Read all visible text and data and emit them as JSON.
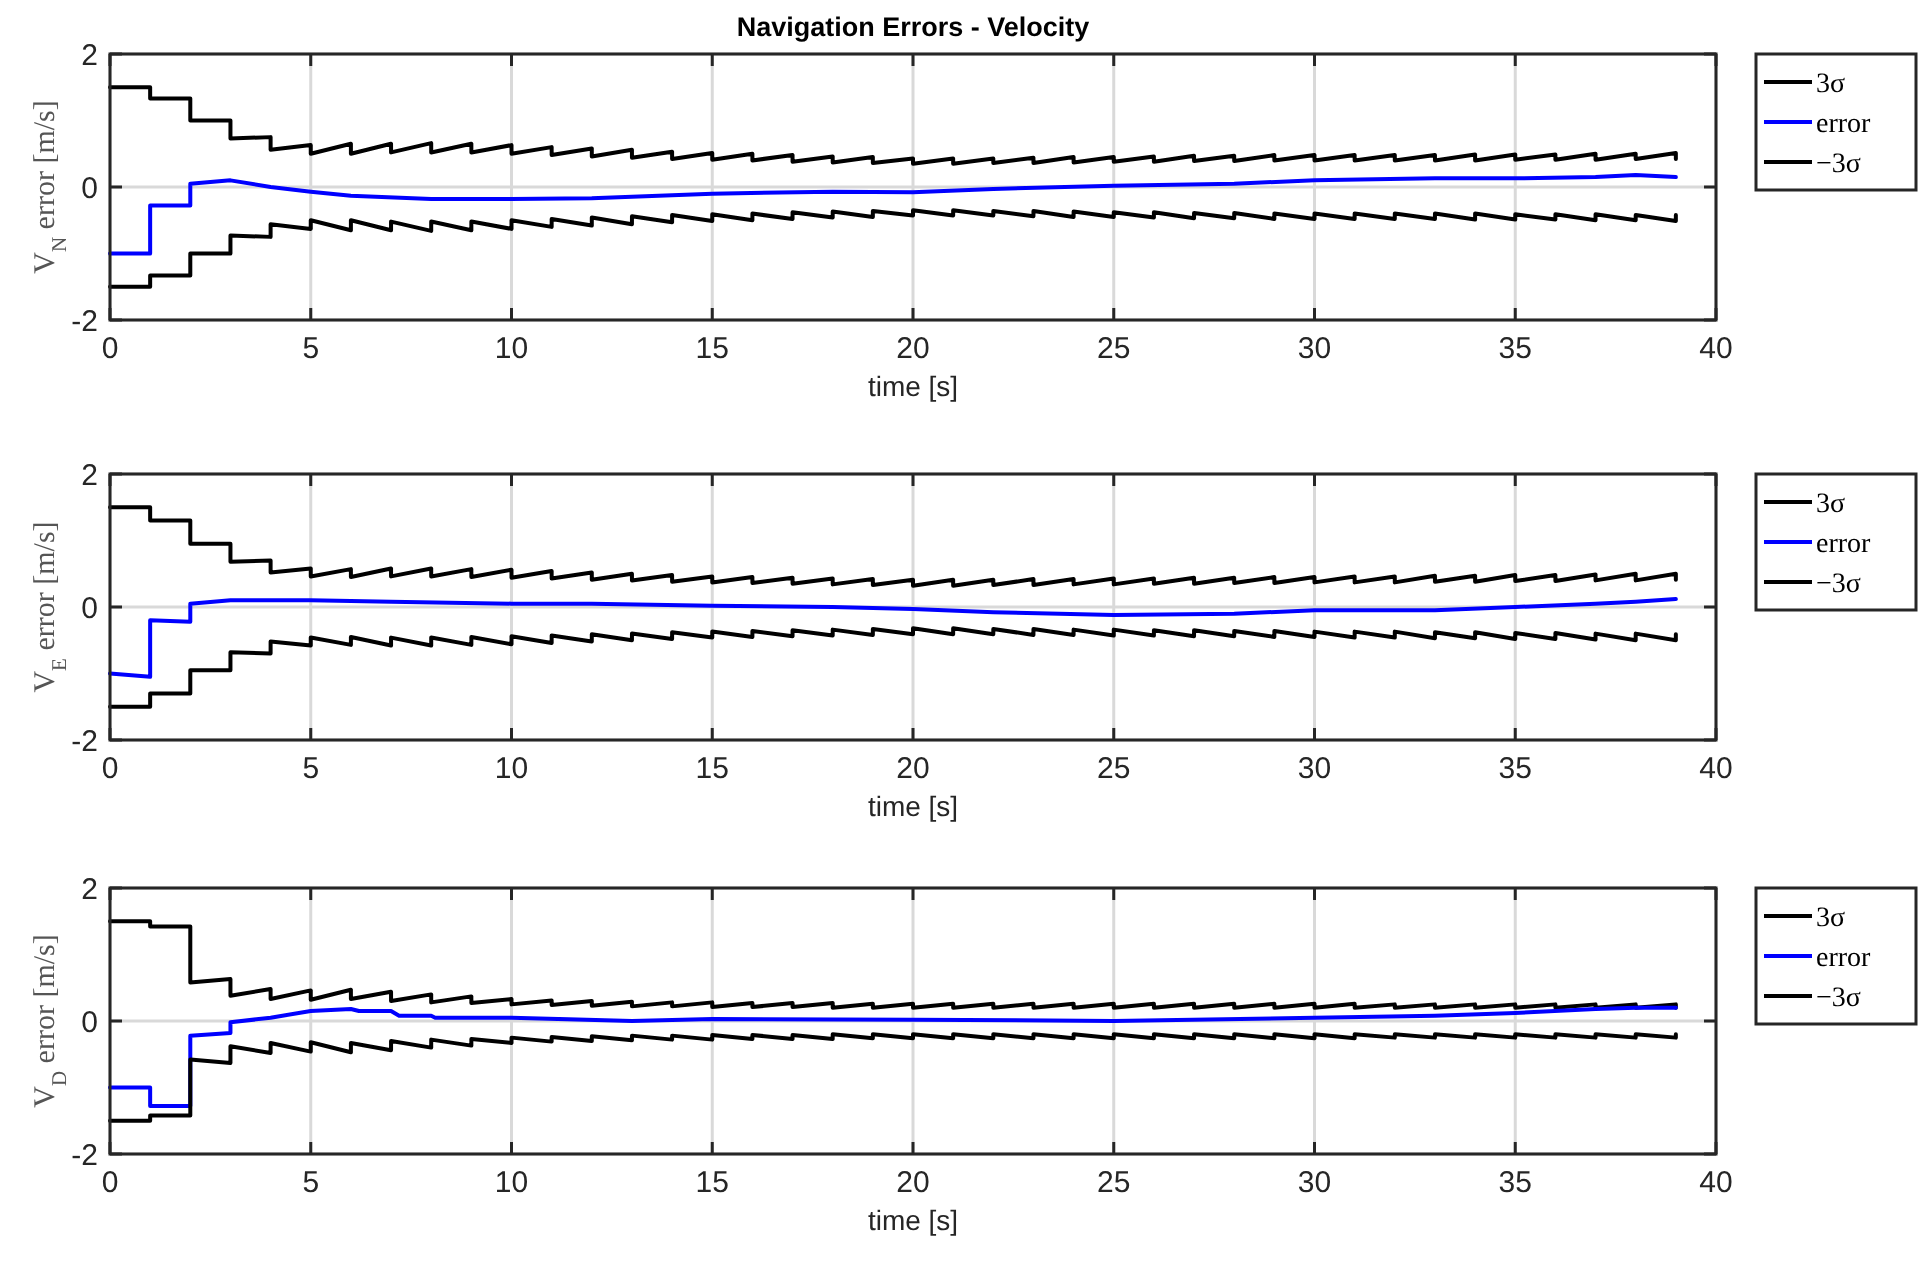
{
  "chart_data": [
    {
      "type": "line",
      "title": "Navigation Errors - Velocity",
      "xlabel": "time [s]",
      "ylabel": "V$_{N}$ error [m/s]",
      "xlim": [
        0,
        40
      ],
      "xticks": [
        0,
        5,
        10,
        15,
        20,
        25,
        30,
        35,
        40
      ],
      "ylim": [
        -2,
        2
      ],
      "yticks": [
        -2,
        0,
        2
      ],
      "grid": true,
      "legend": "right",
      "series": [
        {
          "name": "3σ",
          "color": "#000000",
          "x": [
            0,
            1,
            1,
            2,
            2,
            3,
            3,
            4,
            4,
            5,
            5,
            6,
            6,
            7,
            7,
            8,
            8,
            9,
            9,
            10,
            10,
            11,
            11,
            12,
            12,
            13,
            13,
            14,
            14,
            15,
            15,
            16,
            16,
            17,
            17,
            18,
            18,
            19,
            19,
            20,
            20,
            21,
            21,
            22,
            22,
            23,
            23,
            24,
            24,
            25,
            25,
            26,
            26,
            27,
            27,
            28,
            28,
            29,
            29,
            30,
            30,
            31,
            31,
            32,
            32,
            33,
            33,
            34,
            34,
            35,
            35,
            36,
            36,
            37,
            37,
            38,
            38,
            39,
            39
          ],
          "values": [
            1.5,
            1.5,
            1.33,
            1.33,
            1.0,
            1.0,
            0.73,
            0.75,
            0.56,
            0.63,
            0.5,
            0.65,
            0.5,
            0.65,
            0.52,
            0.66,
            0.52,
            0.65,
            0.52,
            0.63,
            0.5,
            0.6,
            0.48,
            0.58,
            0.46,
            0.56,
            0.44,
            0.53,
            0.42,
            0.51,
            0.41,
            0.5,
            0.4,
            0.48,
            0.38,
            0.46,
            0.37,
            0.45,
            0.36,
            0.43,
            0.35,
            0.43,
            0.35,
            0.43,
            0.36,
            0.44,
            0.36,
            0.45,
            0.37,
            0.45,
            0.38,
            0.46,
            0.38,
            0.47,
            0.39,
            0.47,
            0.39,
            0.48,
            0.4,
            0.48,
            0.4,
            0.48,
            0.4,
            0.48,
            0.4,
            0.48,
            0.4,
            0.49,
            0.4,
            0.49,
            0.41,
            0.49,
            0.41,
            0.5,
            0.41,
            0.5,
            0.42,
            0.51,
            0.42
          ]
        },
        {
          "name": "error",
          "color": "#0000ff",
          "x": [
            0,
            1,
            1,
            2,
            2,
            3,
            4,
            5,
            6,
            8,
            10,
            12,
            15,
            18,
            20,
            22,
            25,
            28,
            30,
            33,
            35,
            37,
            38,
            39
          ],
          "values": [
            -1.0,
            -1.0,
            -0.28,
            -0.28,
            0.05,
            0.1,
            0.0,
            -0.07,
            -0.13,
            -0.18,
            -0.18,
            -0.17,
            -0.1,
            -0.07,
            -0.08,
            -0.03,
            0.02,
            0.05,
            0.1,
            0.13,
            0.13,
            0.15,
            0.18,
            0.15
          ]
        },
        {
          "name": "−3σ",
          "color": "#000000",
          "x": [
            0,
            1,
            1,
            2,
            2,
            3,
            3,
            4,
            4,
            5,
            5,
            6,
            6,
            7,
            7,
            8,
            8,
            9,
            9,
            10,
            10,
            11,
            11,
            12,
            12,
            13,
            13,
            14,
            14,
            15,
            15,
            16,
            16,
            17,
            17,
            18,
            18,
            19,
            19,
            20,
            20,
            21,
            21,
            22,
            22,
            23,
            23,
            24,
            24,
            25,
            25,
            26,
            26,
            27,
            27,
            28,
            28,
            29,
            29,
            30,
            30,
            31,
            31,
            32,
            32,
            33,
            33,
            34,
            34,
            35,
            35,
            36,
            36,
            37,
            37,
            38,
            38,
            39,
            39
          ],
          "values": [
            -1.5,
            -1.5,
            -1.33,
            -1.33,
            -1.0,
            -1.0,
            -0.73,
            -0.75,
            -0.56,
            -0.63,
            -0.5,
            -0.65,
            -0.5,
            -0.65,
            -0.52,
            -0.66,
            -0.52,
            -0.65,
            -0.52,
            -0.63,
            -0.5,
            -0.6,
            -0.48,
            -0.58,
            -0.46,
            -0.56,
            -0.44,
            -0.53,
            -0.42,
            -0.51,
            -0.41,
            -0.5,
            -0.4,
            -0.48,
            -0.38,
            -0.46,
            -0.37,
            -0.45,
            -0.36,
            -0.43,
            -0.35,
            -0.43,
            -0.35,
            -0.43,
            -0.36,
            -0.44,
            -0.36,
            -0.45,
            -0.37,
            -0.45,
            -0.38,
            -0.46,
            -0.38,
            -0.47,
            -0.39,
            -0.47,
            -0.39,
            -0.48,
            -0.4,
            -0.48,
            -0.4,
            -0.48,
            -0.4,
            -0.48,
            -0.4,
            -0.48,
            -0.4,
            -0.49,
            -0.4,
            -0.49,
            -0.41,
            -0.49,
            -0.41,
            -0.5,
            -0.41,
            -0.5,
            -0.42,
            -0.51,
            -0.42
          ]
        }
      ]
    },
    {
      "type": "line",
      "xlabel": "time [s]",
      "ylabel": "V$_{E}$ error [m/s]",
      "xlim": [
        0,
        40
      ],
      "xticks": [
        0,
        5,
        10,
        15,
        20,
        25,
        30,
        35,
        40
      ],
      "ylim": [
        -2,
        2
      ],
      "yticks": [
        -2,
        0,
        2
      ],
      "grid": true,
      "legend": "right",
      "series": [
        {
          "name": "3σ",
          "color": "#000000",
          "x": [
            0,
            1,
            1,
            2,
            2,
            3,
            3,
            4,
            4,
            5,
            5,
            6,
            6,
            7,
            7,
            8,
            8,
            9,
            9,
            10,
            10,
            11,
            11,
            12,
            12,
            13,
            13,
            14,
            14,
            15,
            15,
            16,
            16,
            17,
            17,
            18,
            18,
            19,
            19,
            20,
            20,
            21,
            21,
            22,
            22,
            23,
            23,
            24,
            24,
            25,
            25,
            26,
            26,
            27,
            27,
            28,
            28,
            29,
            29,
            30,
            30,
            31,
            31,
            32,
            32,
            33,
            33,
            34,
            34,
            35,
            35,
            36,
            36,
            37,
            37,
            38,
            38,
            39,
            39
          ],
          "values": [
            1.5,
            1.5,
            1.3,
            1.3,
            0.95,
            0.95,
            0.68,
            0.7,
            0.52,
            0.58,
            0.46,
            0.57,
            0.45,
            0.58,
            0.46,
            0.58,
            0.46,
            0.57,
            0.45,
            0.56,
            0.44,
            0.54,
            0.43,
            0.52,
            0.41,
            0.5,
            0.4,
            0.48,
            0.38,
            0.46,
            0.37,
            0.45,
            0.36,
            0.44,
            0.35,
            0.43,
            0.34,
            0.42,
            0.33,
            0.41,
            0.32,
            0.41,
            0.32,
            0.41,
            0.33,
            0.42,
            0.33,
            0.42,
            0.34,
            0.43,
            0.34,
            0.43,
            0.35,
            0.44,
            0.35,
            0.44,
            0.36,
            0.45,
            0.36,
            0.45,
            0.37,
            0.46,
            0.37,
            0.46,
            0.37,
            0.47,
            0.38,
            0.47,
            0.38,
            0.48,
            0.39,
            0.48,
            0.39,
            0.49,
            0.4,
            0.5,
            0.4,
            0.5,
            0.41
          ]
        },
        {
          "name": "error",
          "color": "#0000ff",
          "x": [
            0,
            1,
            1,
            2,
            2,
            3,
            5,
            7,
            10,
            12,
            15,
            18,
            20,
            22,
            25,
            28,
            30,
            33,
            35,
            37,
            38,
            39
          ],
          "values": [
            -1.0,
            -1.05,
            -0.2,
            -0.22,
            0.05,
            0.1,
            0.1,
            0.08,
            0.05,
            0.05,
            0.02,
            0.0,
            -0.03,
            -0.08,
            -0.12,
            -0.1,
            -0.05,
            -0.05,
            0.0,
            0.05,
            0.08,
            0.12
          ]
        },
        {
          "name": "−3σ",
          "color": "#000000",
          "x": [
            0,
            1,
            1,
            2,
            2,
            3,
            3,
            4,
            4,
            5,
            5,
            6,
            6,
            7,
            7,
            8,
            8,
            9,
            9,
            10,
            10,
            11,
            11,
            12,
            12,
            13,
            13,
            14,
            14,
            15,
            15,
            16,
            16,
            17,
            17,
            18,
            18,
            19,
            19,
            20,
            20,
            21,
            21,
            22,
            22,
            23,
            23,
            24,
            24,
            25,
            25,
            26,
            26,
            27,
            27,
            28,
            28,
            29,
            29,
            30,
            30,
            31,
            31,
            32,
            32,
            33,
            33,
            34,
            34,
            35,
            35,
            36,
            36,
            37,
            37,
            38,
            38,
            39,
            39
          ],
          "values": [
            -1.5,
            -1.5,
            -1.3,
            -1.3,
            -0.95,
            -0.95,
            -0.68,
            -0.7,
            -0.52,
            -0.58,
            -0.46,
            -0.57,
            -0.45,
            -0.58,
            -0.46,
            -0.58,
            -0.46,
            -0.57,
            -0.45,
            -0.56,
            -0.44,
            -0.54,
            -0.43,
            -0.52,
            -0.41,
            -0.5,
            -0.4,
            -0.48,
            -0.38,
            -0.46,
            -0.37,
            -0.45,
            -0.36,
            -0.44,
            -0.35,
            -0.43,
            -0.34,
            -0.42,
            -0.33,
            -0.41,
            -0.32,
            -0.41,
            -0.32,
            -0.41,
            -0.33,
            -0.42,
            -0.33,
            -0.42,
            -0.34,
            -0.43,
            -0.34,
            -0.43,
            -0.35,
            -0.44,
            -0.35,
            -0.44,
            -0.36,
            -0.45,
            -0.36,
            -0.45,
            -0.37,
            -0.46,
            -0.37,
            -0.46,
            -0.37,
            -0.47,
            -0.38,
            -0.47,
            -0.38,
            -0.48,
            -0.39,
            -0.48,
            -0.39,
            -0.49,
            -0.4,
            -0.5,
            -0.4,
            -0.5,
            -0.41
          ]
        }
      ]
    },
    {
      "type": "line",
      "xlabel": "time [s]",
      "ylabel": "V$_{D}$ error [m/s]",
      "xlim": [
        0,
        40
      ],
      "xticks": [
        0,
        5,
        10,
        15,
        20,
        25,
        30,
        35,
        40
      ],
      "ylim": [
        -2,
        2
      ],
      "yticks": [
        -2,
        0,
        2
      ],
      "grid": true,
      "legend": "right",
      "series": [
        {
          "name": "3σ",
          "color": "#000000",
          "x": [
            0,
            1,
            1,
            2,
            2,
            3,
            3,
            4,
            4,
            5,
            5,
            6,
            6,
            7,
            7,
            8,
            8,
            9,
            9,
            10,
            10,
            11,
            11,
            12,
            12,
            13,
            13,
            14,
            14,
            15,
            15,
            16,
            16,
            17,
            17,
            18,
            18,
            19,
            19,
            20,
            20,
            21,
            21,
            22,
            22,
            23,
            23,
            24,
            24,
            25,
            25,
            26,
            26,
            27,
            27,
            28,
            28,
            29,
            29,
            30,
            30,
            31,
            31,
            32,
            32,
            33,
            33,
            34,
            34,
            35,
            35,
            36,
            36,
            37,
            37,
            38,
            38,
            39,
            39
          ],
          "values": [
            1.5,
            1.5,
            1.42,
            1.42,
            0.58,
            0.63,
            0.38,
            0.48,
            0.33,
            0.46,
            0.32,
            0.47,
            0.33,
            0.44,
            0.3,
            0.4,
            0.28,
            0.37,
            0.27,
            0.33,
            0.25,
            0.31,
            0.24,
            0.3,
            0.23,
            0.29,
            0.22,
            0.28,
            0.22,
            0.28,
            0.21,
            0.27,
            0.21,
            0.27,
            0.21,
            0.27,
            0.2,
            0.26,
            0.2,
            0.26,
            0.2,
            0.26,
            0.2,
            0.26,
            0.2,
            0.26,
            0.2,
            0.26,
            0.2,
            0.26,
            0.2,
            0.26,
            0.2,
            0.26,
            0.2,
            0.26,
            0.2,
            0.26,
            0.2,
            0.26,
            0.2,
            0.26,
            0.2,
            0.25,
            0.2,
            0.25,
            0.2,
            0.25,
            0.2,
            0.25,
            0.2,
            0.25,
            0.2,
            0.25,
            0.2,
            0.25,
            0.2,
            0.25,
            0.2
          ]
        },
        {
          "name": "error",
          "color": "#0000ff",
          "x": [
            0,
            1,
            1,
            2,
            2,
            3,
            3,
            4,
            5,
            6,
            6.2,
            7,
            7.2,
            8,
            8.1,
            10,
            13,
            15,
            20,
            25,
            30,
            33,
            35,
            37,
            38,
            39
          ],
          "values": [
            -1.0,
            -1.0,
            -1.28,
            -1.28,
            -0.22,
            -0.18,
            -0.02,
            0.05,
            0.15,
            0.18,
            0.15,
            0.15,
            0.08,
            0.08,
            0.05,
            0.05,
            0.0,
            0.03,
            0.02,
            0.0,
            0.05,
            0.08,
            0.12,
            0.18,
            0.2,
            0.2
          ]
        },
        {
          "name": "−3σ",
          "color": "#000000",
          "x": [
            0,
            1,
            1,
            2,
            2,
            3,
            3,
            4,
            4,
            5,
            5,
            6,
            6,
            7,
            7,
            8,
            8,
            9,
            9,
            10,
            10,
            11,
            11,
            12,
            12,
            13,
            13,
            14,
            14,
            15,
            15,
            16,
            16,
            17,
            17,
            18,
            18,
            19,
            19,
            20,
            20,
            21,
            21,
            22,
            22,
            23,
            23,
            24,
            24,
            25,
            25,
            26,
            26,
            27,
            27,
            28,
            28,
            29,
            29,
            30,
            30,
            31,
            31,
            32,
            32,
            33,
            33,
            34,
            34,
            35,
            35,
            36,
            36,
            37,
            37,
            38,
            38,
            39,
            39
          ],
          "values": [
            -1.5,
            -1.5,
            -1.42,
            -1.42,
            -0.58,
            -0.63,
            -0.38,
            -0.48,
            -0.33,
            -0.46,
            -0.32,
            -0.47,
            -0.33,
            -0.44,
            -0.3,
            -0.4,
            -0.28,
            -0.37,
            -0.27,
            -0.33,
            -0.25,
            -0.31,
            -0.24,
            -0.3,
            -0.23,
            -0.29,
            -0.22,
            -0.28,
            -0.22,
            -0.28,
            -0.21,
            -0.27,
            -0.21,
            -0.27,
            -0.21,
            -0.27,
            -0.2,
            -0.26,
            -0.2,
            -0.26,
            -0.2,
            -0.26,
            -0.2,
            -0.26,
            -0.2,
            -0.26,
            -0.2,
            -0.26,
            -0.2,
            -0.26,
            -0.2,
            -0.26,
            -0.2,
            -0.26,
            -0.2,
            -0.26,
            -0.2,
            -0.26,
            -0.2,
            -0.26,
            -0.2,
            -0.26,
            -0.2,
            -0.25,
            -0.2,
            -0.25,
            -0.2,
            -0.25,
            -0.2,
            -0.25,
            -0.2,
            -0.25,
            -0.2,
            -0.25,
            -0.2,
            -0.25,
            -0.2,
            -0.25,
            -0.2
          ]
        }
      ]
    }
  ]
}
